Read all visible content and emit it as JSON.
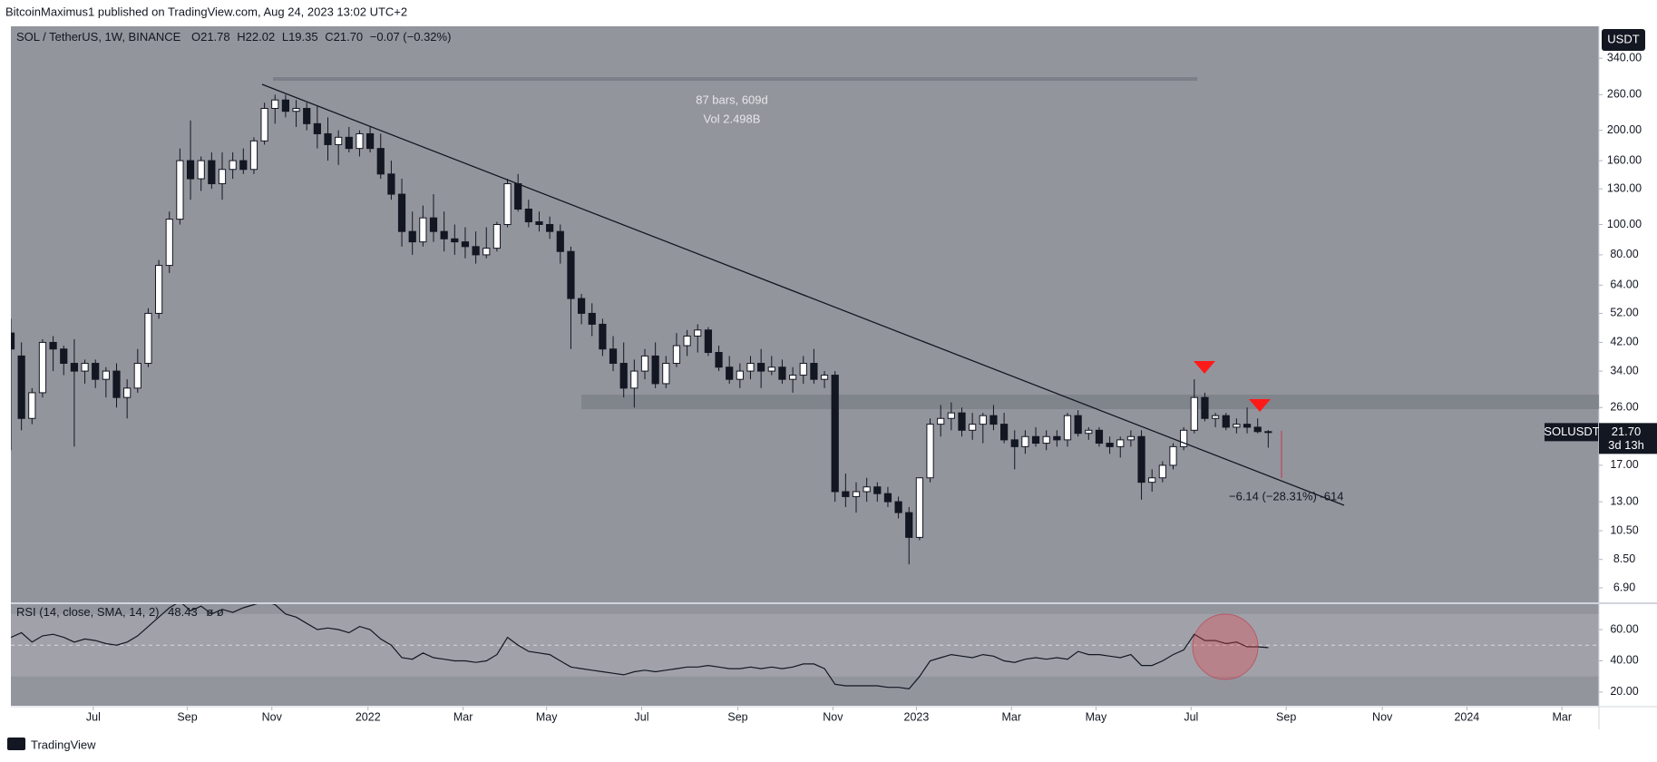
{
  "header": {
    "publisher": "BitcoinMaximus1 published on TradingView.com, Aug 24, 2023 13:02 UTC+2"
  },
  "footer": {
    "brand": "TradingView"
  },
  "chart_data": {
    "type": "candlestick",
    "symbol": "SOL / TetherUS, 1W, BINANCE",
    "ohlc_letters": [
      "O",
      "H",
      "L",
      "C"
    ],
    "last_value_labels": [
      "21.78",
      "22.02",
      "19.35",
      "21.70"
    ],
    "change_label": "−0.07 (−0.32%)",
    "currency": "USDT",
    "ticker": "SOLUSDT",
    "countdown": "3d 13h",
    "log_scale": true,
    "background": "#93959d",
    "up_color": "#ffffff",
    "down_color": "#131722",
    "measure": {
      "bars_label": "87 bars, 609d",
      "volume_label": "Vol 2.498B",
      "change_label": "−6.14 (−28.31%) -614"
    },
    "xlim": [
      0,
      150.3
    ],
    "xticks": [
      {
        "value": 7.8,
        "label": "Jul"
      },
      {
        "value": 16.7,
        "label": "Sep"
      },
      {
        "value": 24.7,
        "label": "Nov"
      },
      {
        "value": 33.8,
        "label": "2022"
      },
      {
        "value": 42.8,
        "label": "Mar"
      },
      {
        "value": 50.7,
        "label": "May"
      },
      {
        "value": 59.7,
        "label": "Jul"
      },
      {
        "value": 68.8,
        "label": "Sep"
      },
      {
        "value": 77.8,
        "label": "Nov"
      },
      {
        "value": 85.7,
        "label": "2023"
      },
      {
        "value": 94.7,
        "label": "Mar"
      },
      {
        "value": 102.7,
        "label": "May"
      },
      {
        "value": 111.7,
        "label": "Jul"
      },
      {
        "value": 120.7,
        "label": "Sep"
      },
      {
        "value": 129.8,
        "label": "Nov"
      },
      {
        "value": 137.8,
        "label": "2024"
      },
      {
        "value": 146.8,
        "label": "Mar"
      }
    ],
    "ylim": [
      6.2,
      430
    ],
    "yticks": [
      {
        "value": 340,
        "label": "340.00"
      },
      {
        "value": 260,
        "label": "260.00"
      },
      {
        "value": 200,
        "label": "200.00"
      },
      {
        "value": 160,
        "label": "160.00"
      },
      {
        "value": 130,
        "label": "130.00"
      },
      {
        "value": 100,
        "label": "100.00"
      },
      {
        "value": 80,
        "label": "80.00"
      },
      {
        "value": 64,
        "label": "64.00"
      },
      {
        "value": 52,
        "label": "52.00"
      },
      {
        "value": 42,
        "label": "42.00"
      },
      {
        "value": 34,
        "label": "34.00"
      },
      {
        "value": 26,
        "label": "26.00"
      },
      {
        "value": 17,
        "label": "17.00"
      },
      {
        "value": 13,
        "label": "13.00"
      },
      {
        "value": 10.5,
        "label": "10.50"
      },
      {
        "value": 8.5,
        "label": "8.50"
      },
      {
        "value": 6.9,
        "label": "6.90"
      }
    ],
    "candles": [
      [
        45,
        50,
        19,
        40
      ],
      [
        38,
        42,
        22,
        24
      ],
      [
        24,
        30,
        23,
        29
      ],
      [
        29,
        43,
        28,
        42
      ],
      [
        42,
        44,
        34,
        40
      ],
      [
        40,
        41,
        33,
        36
      ],
      [
        36,
        43,
        19.5,
        34
      ],
      [
        34,
        37,
        31,
        36
      ],
      [
        36,
        37,
        30,
        32
      ],
      [
        32,
        35,
        28,
        34
      ],
      [
        34,
        36,
        26,
        28
      ],
      [
        28,
        32,
        24,
        30
      ],
      [
        30,
        40,
        29,
        36
      ],
      [
        36,
        54,
        35,
        52
      ],
      [
        52,
        77,
        50,
        74
      ],
      [
        74,
        110,
        70,
        104
      ],
      [
        104,
        175,
        100,
        160
      ],
      [
        160,
        215,
        120,
        140
      ],
      [
        140,
        165,
        128,
        160
      ],
      [
        160,
        170,
        130,
        135
      ],
      [
        135,
        170,
        120,
        150
      ],
      [
        150,
        170,
        140,
        160
      ],
      [
        160,
        175,
        145,
        150
      ],
      [
        150,
        190,
        145,
        185
      ],
      [
        185,
        245,
        180,
        235
      ],
      [
        235,
        260,
        210,
        250
      ],
      [
        250,
        260,
        220,
        230
      ],
      [
        230,
        250,
        205,
        235
      ],
      [
        235,
        245,
        200,
        210
      ],
      [
        210,
        240,
        175,
        195
      ],
      [
        195,
        220,
        160,
        180
      ],
      [
        180,
        200,
        155,
        190
      ],
      [
        190,
        205,
        170,
        175
      ],
      [
        175,
        200,
        165,
        195
      ],
      [
        195,
        205,
        170,
        175
      ],
      [
        175,
        195,
        140,
        145
      ],
      [
        145,
        160,
        120,
        125
      ],
      [
        125,
        140,
        85,
        95
      ],
      [
        95,
        110,
        80,
        88
      ],
      [
        88,
        115,
        85,
        105
      ],
      [
        105,
        125,
        88,
        95
      ],
      [
        95,
        110,
        82,
        90
      ],
      [
        90,
        100,
        80,
        88
      ],
      [
        88,
        98,
        78,
        85
      ],
      [
        85,
        95,
        75,
        80
      ],
      [
        80,
        98,
        78,
        84
      ],
      [
        84,
        102,
        82,
        100
      ],
      [
        100,
        140,
        98,
        135
      ],
      [
        135,
        145,
        110,
        112
      ],
      [
        112,
        120,
        98,
        102
      ],
      [
        102,
        110,
        95,
        100
      ],
      [
        100,
        106,
        90,
        95
      ],
      [
        95,
        100,
        75,
        82
      ],
      [
        82,
        85,
        40,
        58
      ],
      [
        58,
        60,
        48,
        52
      ],
      [
        52,
        56,
        44,
        48
      ],
      [
        48,
        50,
        38,
        40
      ],
      [
        40,
        44,
        34,
        36
      ],
      [
        36,
        42,
        28,
        30
      ],
      [
        30,
        37,
        26,
        34
      ],
      [
        34,
        40,
        32,
        38
      ],
      [
        38,
        42,
        30,
        31
      ],
      [
        31,
        38,
        30,
        36
      ],
      [
        36,
        45,
        35,
        41
      ],
      [
        41,
        46,
        38,
        44
      ],
      [
        44,
        48,
        39,
        46
      ],
      [
        46,
        47,
        38,
        39
      ],
      [
        39,
        41,
        34,
        35
      ],
      [
        35,
        38,
        31,
        32
      ],
      [
        32,
        36,
        30,
        34
      ],
      [
        34,
        38,
        32,
        36
      ],
      [
        36,
        40,
        30,
        34
      ],
      [
        34,
        38,
        33,
        35
      ],
      [
        35,
        37,
        31,
        32
      ],
      [
        32,
        35,
        29,
        33
      ],
      [
        33,
        38,
        31,
        36
      ],
      [
        36,
        40,
        31,
        32
      ],
      [
        32,
        34,
        30,
        33
      ],
      [
        33,
        34,
        13,
        14
      ],
      [
        14,
        16,
        12.5,
        13.5
      ],
      [
        13.5,
        15,
        12,
        14
      ],
      [
        14,
        15.5,
        13,
        14.5
      ],
      [
        14.5,
        15,
        13,
        13.8
      ],
      [
        13.8,
        14.5,
        12.5,
        13
      ],
      [
        13,
        13.5,
        11.5,
        12
      ],
      [
        12,
        12.5,
        8.2,
        10
      ],
      [
        10,
        15.5,
        9.8,
        15.5
      ],
      [
        15.5,
        24,
        15,
        23
      ],
      [
        23,
        26.5,
        21,
        24
      ],
      [
        24,
        27,
        22,
        25
      ],
      [
        25,
        26,
        21,
        22
      ],
      [
        22,
        25,
        20.5,
        23
      ],
      [
        23,
        25,
        20,
        24.5
      ],
      [
        24.5,
        26.5,
        22,
        23
      ],
      [
        23,
        25,
        20,
        20.5
      ],
      [
        20.5,
        22,
        16.5,
        19.5
      ],
      [
        19.5,
        22,
        18.5,
        21
      ],
      [
        21,
        22.5,
        19.5,
        20
      ],
      [
        20,
        22,
        19,
        21
      ],
      [
        21,
        22,
        19.5,
        20.5
      ],
      [
        20.5,
        25,
        19.5,
        24.5
      ],
      [
        24.5,
        25.5,
        21,
        21.5
      ],
      [
        21.5,
        22.5,
        20.5,
        22
      ],
      [
        22,
        22.5,
        19.5,
        20
      ],
      [
        20,
        21,
        18.5,
        19.5
      ],
      [
        19.5,
        21,
        18,
        20.5
      ],
      [
        20.5,
        22,
        19.5,
        21
      ],
      [
        21,
        22,
        13.2,
        15
      ],
      [
        15,
        16.5,
        14,
        15.5
      ],
      [
        15.5,
        17.5,
        15,
        17
      ],
      [
        17,
        20,
        16.5,
        19.5
      ],
      [
        19.5,
        22.5,
        19,
        22
      ],
      [
        22,
        32,
        21.5,
        28
      ],
      [
        28,
        29,
        23.5,
        24
      ],
      [
        24,
        25,
        22.5,
        24.5
      ],
      [
        24.5,
        25,
        22,
        22.5
      ],
      [
        22.5,
        24,
        21.5,
        23
      ],
      [
        23,
        26,
        21.5,
        22.5
      ],
      [
        22.5,
        24,
        21.5,
        21.78
      ],
      [
        21.78,
        22.02,
        19.35,
        21.7
      ]
    ],
    "rsi": {
      "title": "RSI (14, close, SMA, 14, 2)",
      "hidden_labels": "ø ø",
      "color": "#131722",
      "ylim": [
        11.2,
        76.3
      ],
      "yticks": [
        {
          "value": 60,
          "label": "60.00"
        },
        {
          "value": 40,
          "label": "40.00"
        },
        {
          "value": 20,
          "label": "20.00"
        }
      ],
      "band": [
        30,
        70
      ],
      "midline": 50,
      "values": [
        55,
        58,
        52,
        56,
        57,
        55,
        52,
        54,
        53,
        51,
        50,
        52,
        56,
        62,
        68,
        74,
        78,
        72,
        75,
        70,
        73,
        71,
        74,
        76,
        78,
        76,
        70,
        68,
        64,
        60,
        61,
        60,
        58,
        62,
        60,
        54,
        50,
        42,
        41,
        45,
        42,
        41,
        40,
        40,
        39,
        40,
        44,
        55,
        50,
        46,
        45,
        44,
        40,
        36,
        35,
        34,
        33,
        32,
        31,
        33,
        34,
        33,
        34,
        35,
        36,
        36,
        37,
        36,
        35,
        35,
        36,
        35,
        36,
        35,
        36,
        38,
        38,
        35,
        25,
        24,
        24,
        24,
        24,
        23,
        23,
        22,
        30,
        40,
        42,
        44,
        43,
        42,
        44,
        43,
        40,
        39,
        41,
        42,
        41,
        42,
        41,
        46,
        44,
        44,
        43,
        42,
        44,
        37,
        37,
        40,
        44,
        47,
        57,
        53,
        53,
        51,
        52,
        49,
        49,
        48.43
      ]
    }
  }
}
